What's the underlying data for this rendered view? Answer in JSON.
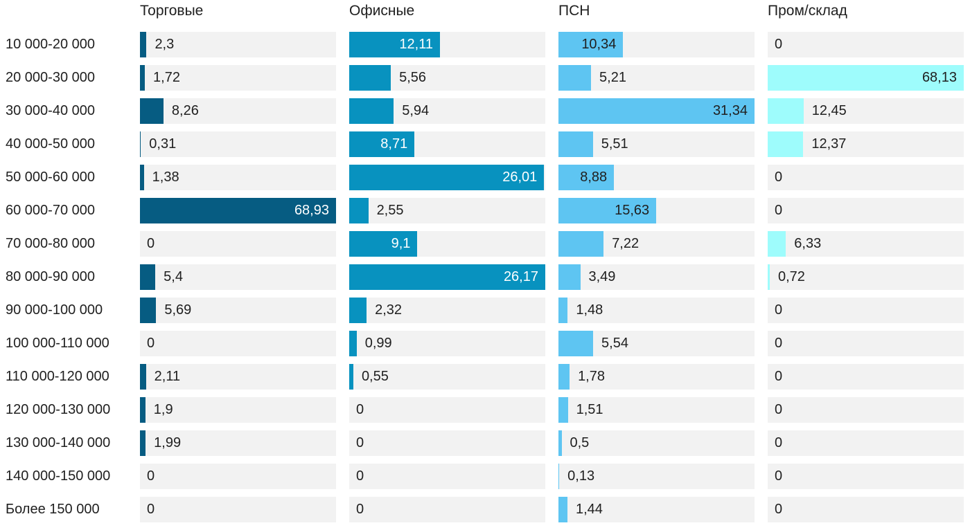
{
  "chart_data": {
    "type": "bar",
    "orientation": "horizontal",
    "title": "",
    "value_format": "comma-decimal",
    "scaling": "each column scaled independently to its own maximum value",
    "grid": false,
    "track_color": "#f2f2f2",
    "text_color": "#202020",
    "categories": [
      "10 000-20 000",
      "20 000-30 000",
      "30 000-40 000",
      "40 000-50 000",
      "50 000-60 000",
      "60 000-70 000",
      "70 000-80 000",
      "80 000-90 000",
      "90 000-100 000",
      "100 000-110 000",
      "110 000-120 000",
      "120 000-130 000",
      "130 000-140 000",
      "140 000-150 000",
      "Более 150 000"
    ],
    "series": [
      {
        "name": "Торговые",
        "color": "#065c82",
        "label_color_inside": "#ffffff",
        "values": [
          2.3,
          1.72,
          8.26,
          0.31,
          1.38,
          68.93,
          0,
          5.4,
          5.69,
          0,
          2.11,
          1.9,
          1.99,
          0,
          0
        ],
        "labels": [
          "2,3",
          "1,72",
          "8,26",
          "0,31",
          "1,38",
          "68,93",
          "0",
          "5,4",
          "5,69",
          "0",
          "2,11",
          "1,9",
          "1,99",
          "0",
          "0"
        ]
      },
      {
        "name": "Офисные",
        "color": "#0892bf",
        "label_color_inside": "#ffffff",
        "values": [
          12.11,
          5.56,
          5.94,
          8.71,
          26.01,
          2.55,
          9.1,
          26.17,
          2.32,
          0.99,
          0.55,
          0,
          0,
          0,
          0
        ],
        "labels": [
          "12,11",
          "5,56",
          "5,94",
          "8,71",
          "26,01",
          "2,55",
          "9,1",
          "26,17",
          "2,32",
          "0,99",
          "0,55",
          "0",
          "0",
          "0",
          "0"
        ]
      },
      {
        "name": "ПСН",
        "color": "#5ec5f2",
        "label_color_inside": "#202020",
        "values": [
          10.34,
          5.21,
          31.34,
          5.51,
          8.88,
          15.63,
          7.22,
          3.49,
          1.48,
          5.54,
          1.78,
          1.51,
          0.5,
          0.13,
          1.44
        ],
        "labels": [
          "10,34",
          "5,21",
          "31,34",
          "5,51",
          "8,88",
          "15,63",
          "7,22",
          "3,49",
          "1,48",
          "5,54",
          "1,78",
          "1,51",
          "0,5",
          "0,13",
          "1,44"
        ]
      },
      {
        "name": "Пром/склад",
        "color": "#9efcfc",
        "label_color_inside": "#202020",
        "values": [
          0,
          68.13,
          12.45,
          12.37,
          0,
          0,
          6.33,
          0.72,
          0,
          0,
          0,
          0,
          0,
          0,
          0
        ],
        "labels": [
          "0",
          "68,13",
          "12,45",
          "12,37",
          "0",
          "0",
          "6,33",
          "0,72",
          "0",
          "0",
          "0",
          "0",
          "0",
          "0",
          "0"
        ]
      }
    ]
  }
}
